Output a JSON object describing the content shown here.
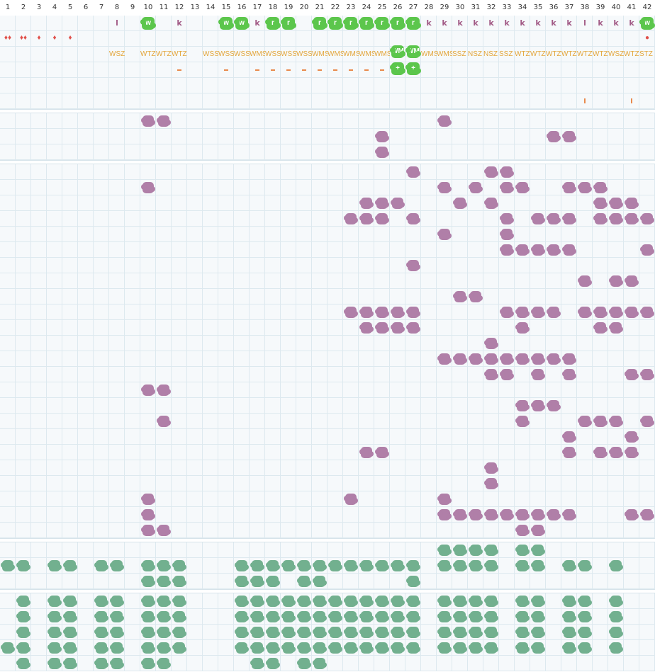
{
  "columns": [
    "1",
    "2",
    "3",
    "4",
    "5",
    "6",
    "7",
    "8",
    "9",
    "10",
    "11",
    "12",
    "13",
    "14",
    "15",
    "16",
    "17",
    "18",
    "19",
    "20",
    "21",
    "22",
    "23",
    "24",
    "25",
    "26",
    "27",
    "28",
    "29",
    "30",
    "31",
    "32",
    "33",
    "34",
    "35",
    "36",
    "37",
    "38",
    "39",
    "40",
    "41",
    "42"
  ],
  "top_letters": [
    {
      "col": 8,
      "text": "l"
    },
    {
      "col": 10,
      "text": "w",
      "tag": true
    },
    {
      "col": 12,
      "text": "k"
    },
    {
      "col": 15,
      "text": "w",
      "tag": true
    },
    {
      "col": 16,
      "text": "w",
      "tag": true
    },
    {
      "col": 17,
      "text": "k"
    },
    {
      "col": 18,
      "text": "r",
      "tag": true
    },
    {
      "col": 19,
      "text": "r",
      "tag": true
    },
    {
      "col": 21,
      "text": "r",
      "tag": true
    },
    {
      "col": 22,
      "text": "r",
      "tag": true
    },
    {
      "col": 23,
      "text": "r",
      "tag": true
    },
    {
      "col": 24,
      "text": "r",
      "tag": true
    },
    {
      "col": 25,
      "text": "r",
      "tag": true
    },
    {
      "col": 26,
      "text": "r",
      "tag": true
    },
    {
      "col": 27,
      "text": "r",
      "tag": true
    },
    {
      "col": 28,
      "text": "k"
    },
    {
      "col": 29,
      "text": "k"
    },
    {
      "col": 30,
      "text": "k"
    },
    {
      "col": 31,
      "text": "k"
    },
    {
      "col": 32,
      "text": "k"
    },
    {
      "col": 33,
      "text": "k"
    },
    {
      "col": 34,
      "text": "k"
    },
    {
      "col": 35,
      "text": "k"
    },
    {
      "col": 36,
      "text": "k"
    },
    {
      "col": 37,
      "text": "k"
    },
    {
      "col": 38,
      "text": "l"
    },
    {
      "col": 39,
      "text": "k"
    },
    {
      "col": 40,
      "text": "k"
    },
    {
      "col": 41,
      "text": "k"
    },
    {
      "col": 42,
      "text": "w",
      "tag": true
    }
  ],
  "drops": [
    {
      "col": 1,
      "text": "♦♦"
    },
    {
      "col": 2,
      "text": "♦♦"
    },
    {
      "col": 3,
      "text": "♦"
    },
    {
      "col": 4,
      "text": "♦"
    },
    {
      "col": 5,
      "text": "♦"
    },
    {
      "col": 42,
      "text": "●"
    }
  ],
  "yellow_labels": [
    {
      "col": 8,
      "text": "WŚZ"
    },
    {
      "col": 10,
      "text": "WTZ"
    },
    {
      "col": 11,
      "text": "WTZ"
    },
    {
      "col": 12,
      "text": "WTZ"
    },
    {
      "col": 14,
      "text": "WŚŚ"
    },
    {
      "col": 15,
      "text": "WŚŚ"
    },
    {
      "col": 16,
      "text": "WŚŚ"
    },
    {
      "col": 17,
      "text": "WMŚ"
    },
    {
      "col": 18,
      "text": "WŚŚ"
    },
    {
      "col": 19,
      "text": "WŚŚ"
    },
    {
      "col": 20,
      "text": "WŚŚ"
    },
    {
      "col": 21,
      "text": "WMŚ"
    },
    {
      "col": 22,
      "text": "WMŚ"
    },
    {
      "col": 23,
      "text": "WMŚ"
    },
    {
      "col": 24,
      "text": "WMŚ"
    },
    {
      "col": 25,
      "text": "WMŚ"
    },
    {
      "col": 28,
      "text": "WMŚ"
    },
    {
      "col": 29,
      "text": "WMŚ"
    },
    {
      "col": 30,
      "text": "ŚŚZ"
    },
    {
      "col": 31,
      "text": "NŚZ"
    },
    {
      "col": 32,
      "text": "NŚZ"
    },
    {
      "col": 33,
      "text": "ŚŚZ"
    },
    {
      "col": 34,
      "text": "WTZ"
    },
    {
      "col": 35,
      "text": "WTZ"
    },
    {
      "col": 36,
      "text": "WTZ"
    },
    {
      "col": 37,
      "text": "WTZ"
    },
    {
      "col": 38,
      "text": "WTZ"
    },
    {
      "col": 39,
      "text": "WTZ"
    },
    {
      "col": 40,
      "text": "WŚZ"
    },
    {
      "col": 41,
      "text": "WTZ"
    },
    {
      "col": 42,
      "text": "ŚTZ"
    }
  ],
  "lime_tags": [
    {
      "col": 26,
      "row": 3,
      "text": "WM"
    },
    {
      "col": 27,
      "row": 3,
      "text": "WM"
    },
    {
      "col": 26,
      "row": 4,
      "text": "+"
    },
    {
      "col": 27,
      "row": 4,
      "text": "+"
    }
  ],
  "dash_cols": [
    12,
    15,
    17,
    18,
    19,
    20,
    21,
    22,
    23,
    24,
    25
  ],
  "tick_cols": [
    38,
    41
  ],
  "colors": {
    "purple": "#b07fa8",
    "teal": "#72b08f",
    "lime": "#5cc64c",
    "orange": "#e98a4d",
    "yellow": "#e3a63c"
  }
}
